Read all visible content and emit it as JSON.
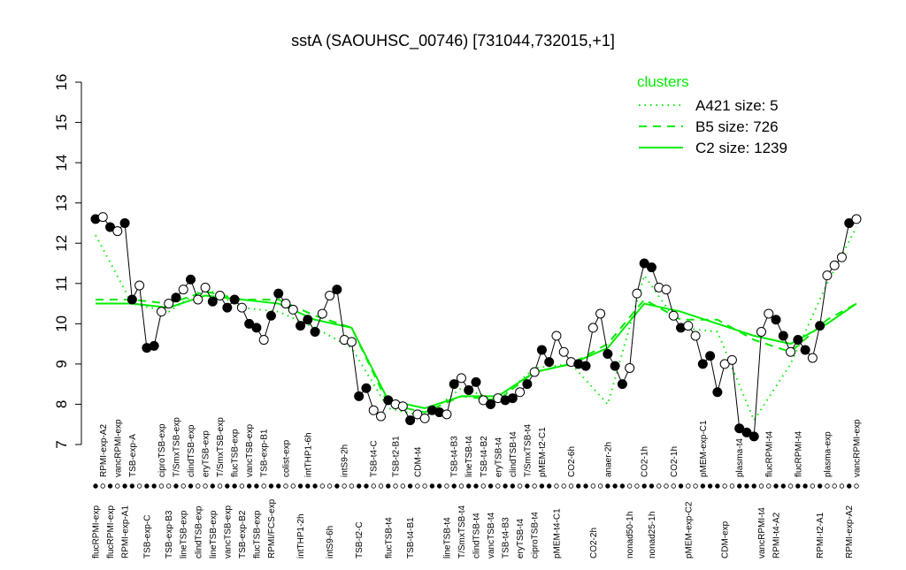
{
  "chart_data": {
    "type": "line",
    "title": "sstA (SAOUHSC_00746) [731044,732015,+1]",
    "ylim": [
      7,
      16
    ],
    "yticks": [
      7,
      8,
      9,
      10,
      11,
      12,
      13,
      14,
      15,
      16
    ],
    "legend_title": "clusters",
    "legend_position": "top-right",
    "color": "#000000",
    "categories": [
      "flucRPMI-exp",
      "RPMI-exp-A2",
      "flucRPMI-exp",
      "vancRPMI-exp",
      "RPMI-exp-A1",
      "TSB-exp-A",
      null,
      "TSB-exp-C",
      null,
      "ciproTSB-exp",
      "TSB-exp-B3",
      "T/SmxTSB-exp",
      "lineTSB-exp",
      "clindTSB-exp",
      "clindTSB-exp",
      "eryTSB-exp",
      "lineTSB-exp",
      "T/SmxTSB-exp",
      "vancTSB-exp",
      "flucTSB-exp",
      "TSB-exp-B2",
      "vancTSB-exp",
      "flucTSB-exp",
      "TSB-exp-B1",
      "RPMI/FCS-exp",
      null,
      "colist-exp",
      null,
      "intTHP1-2h",
      "intTHP1-6h",
      null,
      null,
      "intS9-6h",
      null,
      "intS9-2h",
      null,
      "TSB-t2-C",
      null,
      "TSB-t4-C",
      null,
      "flucTSB-t4",
      "TSB-t2-B1",
      null,
      "TSB-t4-B1",
      "CDM-t4",
      null,
      null,
      null,
      "lineTSB-t4",
      "TSB-t4-B3",
      "T/SmxTSB-t4",
      "lineTSB-t4",
      "clindTSB-t4",
      "TSB-t4-B2",
      "vancTSB-t4",
      "eryTSB-t4",
      "TSB-t4-B3",
      "clindTSB-t4",
      "eryTSB-t4",
      "T/SmxTSB-t4",
      "ciproTSB-t4",
      "pMEM-t2-C1",
      null,
      "pMEM-t4-C1",
      null,
      "CO2-6h",
      null,
      null,
      "CO2-2h",
      null,
      "anaer-2h",
      null,
      null,
      "nonad50-1h",
      null,
      "CO2-1h",
      "nonad25-1h",
      null,
      null,
      "CO2-1h",
      null,
      "pMEM-exp-C2",
      null,
      "pMEM-exp-C1",
      null,
      null,
      "CDM-exp",
      null,
      "plasma-t4",
      null,
      null,
      "vancRPMI-t4",
      "flucRPMI-t4",
      "RPMI-t4-A2",
      null,
      null,
      "flucRPMI-t4",
      null,
      null,
      "RPMI-t2-A1",
      "plasma-exp",
      null,
      null,
      "RPMI-exp-A2",
      "vancRPMI-exp"
    ],
    "values": [
      12.6,
      12.65,
      12.4,
      12.3,
      12.5,
      10.6,
      10.95,
      9.4,
      9.45,
      10.3,
      10.5,
      10.65,
      10.85,
      11.1,
      10.6,
      10.9,
      10.55,
      10.7,
      10.4,
      10.6,
      10.4,
      10.0,
      9.9,
      9.6,
      10.2,
      10.75,
      10.5,
      10.35,
      9.95,
      10.1,
      9.8,
      10.25,
      10.7,
      10.85,
      9.6,
      9.55,
      8.2,
      8.4,
      7.85,
      7.7,
      8.1,
      8.0,
      7.95,
      7.6,
      7.75,
      7.65,
      7.85,
      7.8,
      7.75,
      8.5,
      8.65,
      8.35,
      8.55,
      8.1,
      8.0,
      8.15,
      8.1,
      8.15,
      8.3,
      8.5,
      8.8,
      9.35,
      9.05,
      9.7,
      9.3,
      9.05,
      9.0,
      8.95,
      9.9,
      10.25,
      9.25,
      8.95,
      8.5,
      8.9,
      10.75,
      11.5,
      11.4,
      10.9,
      10.85,
      10.2,
      9.9,
      9.95,
      9.7,
      9.0,
      9.2,
      8.3,
      9.0,
      9.1,
      7.4,
      7.3,
      7.2,
      9.8,
      10.25,
      10.1,
      9.7,
      9.3,
      9.6,
      9.35,
      9.15,
      9.95,
      11.2,
      11.45,
      11.65,
      12.5,
      12.6
    ],
    "filled": [
      true,
      false,
      true,
      false,
      true,
      true,
      false,
      true,
      true,
      false,
      false,
      true,
      false,
      true,
      false,
      false,
      true,
      false,
      true,
      true,
      false,
      true,
      true,
      false,
      true,
      true,
      false,
      false,
      true,
      true,
      true,
      false,
      false,
      true,
      false,
      false,
      true,
      true,
      false,
      false,
      true,
      false,
      false,
      true,
      false,
      false,
      true,
      true,
      false,
      true,
      false,
      true,
      true,
      false,
      true,
      false,
      true,
      true,
      false,
      true,
      false,
      true,
      true,
      false,
      false,
      false,
      true,
      true,
      false,
      false,
      true,
      true,
      true,
      false,
      false,
      true,
      true,
      false,
      false,
      false,
      true,
      false,
      false,
      true,
      true,
      true,
      false,
      false,
      true,
      true,
      true,
      false,
      false,
      true,
      true,
      false,
      true,
      true,
      false,
      true,
      false,
      false,
      false,
      true,
      false
    ],
    "series": [
      {
        "name": "A421 size: 5",
        "color": "#00ee00",
        "dash": "dotted",
        "x": [
          1,
          6,
          11,
          16,
          21,
          26,
          31,
          36,
          41,
          46,
          51,
          56,
          61,
          66,
          71,
          76,
          81,
          86,
          91,
          96,
          101,
          105
        ],
        "values": [
          12.2,
          10.5,
          10.3,
          10.9,
          10.4,
          10.3,
          9.9,
          9.4,
          7.9,
          7.7,
          8.4,
          8.1,
          8.9,
          9.0,
          8.0,
          11.2,
          9.9,
          9.8,
          7.6,
          9.0,
          11.0,
          12.4
        ]
      },
      {
        "name": "B5 size: 726",
        "color": "#00ee00",
        "dash": "dashed",
        "x": [
          1,
          6,
          11,
          16,
          21,
          26,
          31,
          36,
          41,
          46,
          51,
          56,
          61,
          66,
          71,
          76,
          81,
          86,
          91,
          96,
          101,
          105
        ],
        "values": [
          10.6,
          10.6,
          10.5,
          10.8,
          10.6,
          10.6,
          10.2,
          9.9,
          8.0,
          7.8,
          8.2,
          8.1,
          8.8,
          9.0,
          9.5,
          10.6,
          10.1,
          10.1,
          9.6,
          9.3,
          10.1,
          10.5
        ]
      },
      {
        "name": "C2 size: 1239",
        "color": "#00ee00",
        "dash": "solid",
        "x": [
          1,
          6,
          11,
          16,
          21,
          26,
          31,
          36,
          41,
          46,
          51,
          56,
          61,
          66,
          71,
          76,
          81,
          86,
          91,
          96,
          101,
          105
        ],
        "values": [
          10.5,
          10.5,
          10.4,
          10.7,
          10.6,
          10.5,
          10.1,
          9.9,
          8.1,
          7.9,
          8.2,
          8.2,
          8.8,
          9.0,
          9.4,
          10.5,
          10.3,
          10.0,
          9.7,
          9.5,
          10.0,
          10.5
        ]
      }
    ]
  }
}
